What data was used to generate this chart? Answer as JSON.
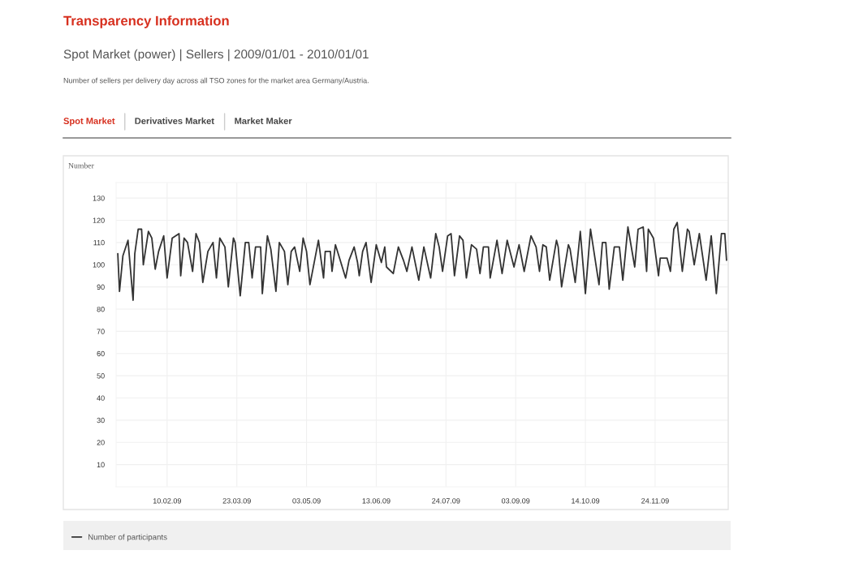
{
  "chart_data": {
    "type": "line",
    "title": "Transparency Information",
    "subtitle": "Spot Market (power) | Sellers | 2009/01/01 - 2010/01/01",
    "annotations": [
      "Number of sellers per delivery day across all TSO zones for the market area Germany/Austria.",
      "Spot Market",
      "Derivatives Market",
      "Market Maker"
    ],
    "ylabel": "Number",
    "x": [
      "2009-01-12",
      "2009-01-13",
      "2009-01-15",
      "2009-01-18",
      "2009-01-21",
      "2009-01-22",
      "2009-01-24",
      "2009-01-26",
      "2009-01-27",
      "2009-01-30",
      "2009-02-01",
      "2009-02-03",
      "2009-02-05",
      "2009-02-08",
      "2009-02-10",
      "2009-02-13",
      "2009-02-15",
      "2009-02-17",
      "2009-02-18",
      "2009-02-20",
      "2009-02-22",
      "2009-02-25",
      "2009-02-27",
      "2009-03-01",
      "2009-03-03",
      "2009-03-06",
      "2009-03-09",
      "2009-03-11",
      "2009-03-13",
      "2009-03-16",
      "2009-03-18",
      "2009-03-21",
      "2009-03-22",
      "2009-03-25",
      "2009-03-28",
      "2009-03-30",
      "2009-04-01",
      "2009-04-03",
      "2009-04-06",
      "2009-04-07",
      "2009-04-10",
      "2009-04-12",
      "2009-04-15",
      "2009-04-17",
      "2009-04-20",
      "2009-04-22",
      "2009-04-24",
      "2009-04-26",
      "2009-04-29",
      "2009-05-01",
      "2009-05-03",
      "2009-05-05",
      "2009-05-08",
      "2009-05-10",
      "2009-05-13",
      "2009-05-14",
      "2009-05-17",
      "2009-05-18",
      "2009-05-20",
      "2009-05-22",
      "2009-05-26",
      "2009-05-28",
      "2009-05-31",
      "2009-06-02",
      "2009-06-03",
      "2009-06-05",
      "2009-06-07",
      "2009-06-10",
      "2009-06-13",
      "2009-06-16",
      "2009-06-18",
      "2009-06-19",
      "2009-06-23",
      "2009-06-26",
      "2009-06-29",
      "2009-07-01",
      "2009-07-04",
      "2009-07-08",
      "2009-07-11",
      "2009-07-15",
      "2009-07-18",
      "2009-07-20",
      "2009-07-22",
      "2009-07-25",
      "2009-07-27",
      "2009-07-29",
      "2009-08-01",
      "2009-08-03",
      "2009-08-05",
      "2009-08-08",
      "2009-08-11",
      "2009-08-13",
      "2009-08-15",
      "2009-08-18",
      "2009-08-19",
      "2009-08-23",
      "2009-08-26",
      "2009-08-29",
      "2009-09-02",
      "2009-09-05",
      "2009-09-08",
      "2009-09-12",
      "2009-09-15",
      "2009-09-17",
      "2009-09-19",
      "2009-09-21",
      "2009-09-23",
      "2009-09-27",
      "2009-09-28",
      "2009-09-30",
      "2009-10-04",
      "2009-10-05",
      "2009-10-08",
      "2009-10-11",
      "2009-10-14",
      "2009-10-17",
      "2009-10-22",
      "2009-10-24",
      "2009-10-26",
      "2009-10-28",
      "2009-10-31",
      "2009-11-03",
      "2009-11-05",
      "2009-11-08",
      "2009-11-12",
      "2009-11-14",
      "2009-11-17",
      "2009-11-19",
      "2009-11-20",
      "2009-11-23",
      "2009-11-26",
      "2009-11-27",
      "2009-12-01",
      "2009-12-03",
      "2009-12-05",
      "2009-12-07",
      "2009-12-10",
      "2009-12-13",
      "2009-12-14",
      "2009-12-17",
      "2009-12-20",
      "2009-12-24",
      "2009-12-27",
      "2009-12-30",
      "2010-01-02",
      "2010-01-04",
      "2010-01-05"
    ],
    "series": [
      {
        "name": "Number of participants",
        "color": "#333333",
        "values": [
          105,
          88,
          104,
          111,
          84,
          105,
          116,
          116,
          100,
          115,
          112,
          98,
          106,
          113,
          94,
          112,
          113,
          114,
          95,
          112,
          110,
          97,
          114,
          110,
          92,
          106,
          110,
          94,
          112,
          108,
          90,
          112,
          110,
          86,
          110,
          110,
          94,
          108,
          108,
          87,
          113,
          107,
          88,
          110,
          106,
          91,
          106,
          108,
          97,
          112,
          106,
          91,
          103,
          111,
          94,
          106,
          106,
          97,
          109,
          104,
          94,
          102,
          108,
          101,
          95,
          106,
          110,
          92,
          109,
          101,
          108,
          99,
          96,
          108,
          102,
          97,
          108,
          93,
          108,
          94,
          114,
          108,
          97,
          113,
          114,
          95,
          113,
          111,
          94,
          109,
          107,
          96,
          108,
          108,
          94,
          111,
          96,
          111,
          99,
          109,
          97,
          113,
          108,
          97,
          109,
          108,
          93,
          111,
          108,
          90,
          109,
          107,
          92,
          115,
          87,
          116,
          91,
          110,
          110,
          89,
          108,
          108,
          93,
          117,
          99,
          116,
          117,
          97,
          116,
          112,
          95,
          103,
          103,
          97,
          116,
          119,
          97,
          116,
          115,
          100,
          114,
          93,
          113,
          87,
          114,
          114,
          102
        ]
      }
    ],
    "xlim": [
      "2009-01-11",
      "2010-01-06"
    ],
    "xticks": [
      {
        "value": "2009-02-10",
        "label": "10.02.09"
      },
      {
        "value": "2009-03-23",
        "label": "23.03.09"
      },
      {
        "value": "2009-05-03",
        "label": "03.05.09"
      },
      {
        "value": "2009-06-13",
        "label": "13.06.09"
      },
      {
        "value": "2009-07-24",
        "label": "24.07.09"
      },
      {
        "value": "2009-09-03",
        "label": "03.09.09"
      },
      {
        "value": "2009-10-14",
        "label": "14.10.09"
      },
      {
        "value": "2009-11-24",
        "label": "24.11.09"
      }
    ],
    "ylim": [
      0,
      137
    ],
    "yticks": [
      10,
      20,
      30,
      40,
      50,
      60,
      70,
      80,
      90,
      100,
      110,
      120,
      130
    ],
    "grid": true,
    "legend": "bottom",
    "line_style": "solid",
    "marker": "none"
  }
}
